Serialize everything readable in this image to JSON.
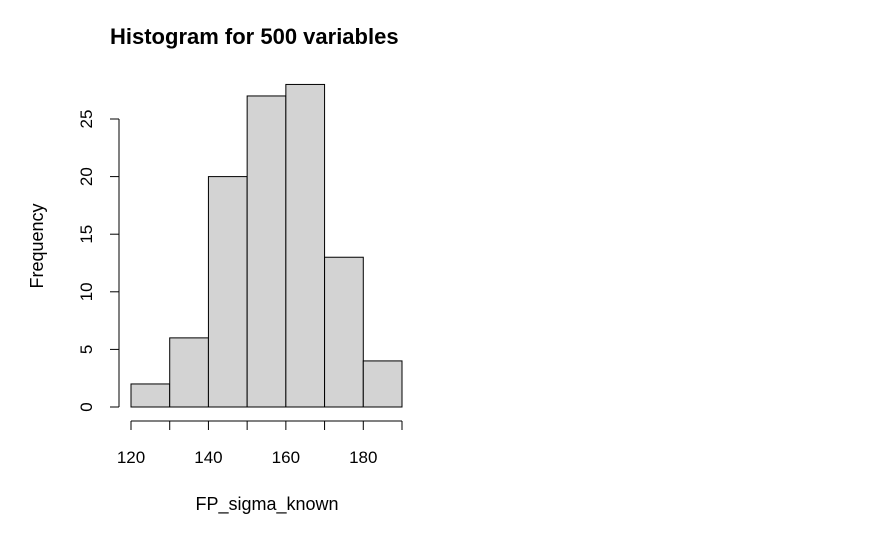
{
  "chart_data": {
    "type": "bar",
    "title": "Histogram for 500 variables",
    "xlabel": "FP_sigma_known",
    "ylabel": "Frequency",
    "bins": [
      {
        "start": 120,
        "end": 130,
        "value": 2
      },
      {
        "start": 130,
        "end": 140,
        "value": 6
      },
      {
        "start": 140,
        "end": 150,
        "value": 20
      },
      {
        "start": 150,
        "end": 160,
        "value": 27
      },
      {
        "start": 160,
        "end": 170,
        "value": 28
      },
      {
        "start": 170,
        "end": 180,
        "value": 13
      },
      {
        "start": 180,
        "end": 190,
        "value": 4
      }
    ],
    "xlim": [
      120,
      190
    ],
    "ylim": [
      0,
      28
    ],
    "x_ticks": [
      120,
      130,
      140,
      150,
      160,
      170,
      180,
      190
    ],
    "x_tick_labels": [
      "120",
      "",
      "140",
      "",
      "160",
      "",
      "180",
      ""
    ],
    "y_ticks": [
      0,
      5,
      10,
      15,
      20,
      25
    ],
    "y_tick_labels": [
      "0",
      "5",
      "10",
      "15",
      "20",
      "25"
    ],
    "bar_fill": "#d3d3d3",
    "bar_stroke": "#000000",
    "grid": false,
    "legend": "none"
  }
}
